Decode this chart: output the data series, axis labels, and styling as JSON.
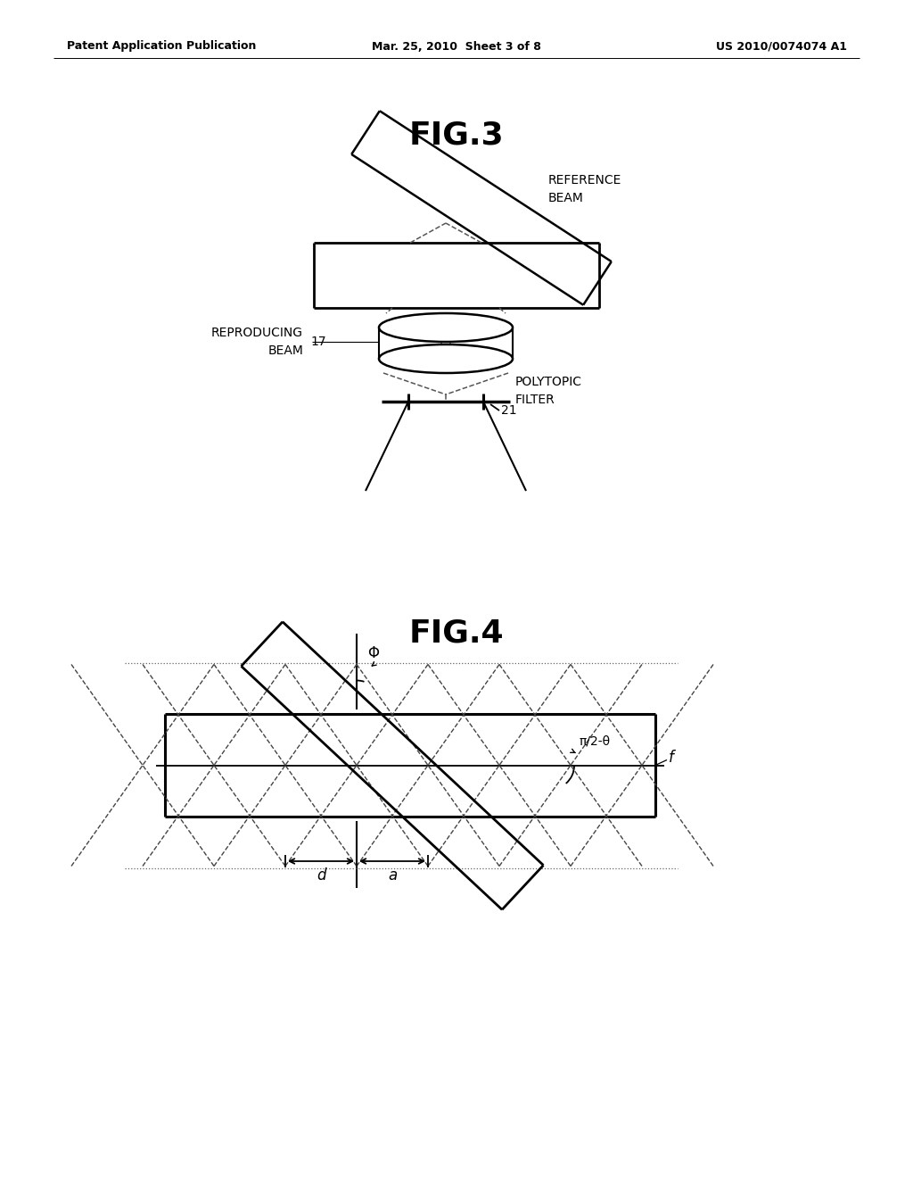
{
  "bg_color": "#ffffff",
  "line_color": "#000000",
  "header_left": "Patent Application Publication",
  "header_mid": "Mar. 25, 2010  Sheet 3 of 8",
  "header_right": "US 2010/0074074 A1",
  "fig3_title": "FIG.3",
  "fig4_title": "FIG.4",
  "label_reference_beam": "REFERENCE\nBEAM",
  "label_reproducing_beam": "REPRODUCING\nBEAM",
  "label_17": "17",
  "label_polytopic": "POLYTOPIC\nFILTER",
  "label_21": "21",
  "label_phi": "Φ",
  "label_angle": "π/2-θ",
  "label_f": "f",
  "label_d": "d",
  "label_a": "a"
}
